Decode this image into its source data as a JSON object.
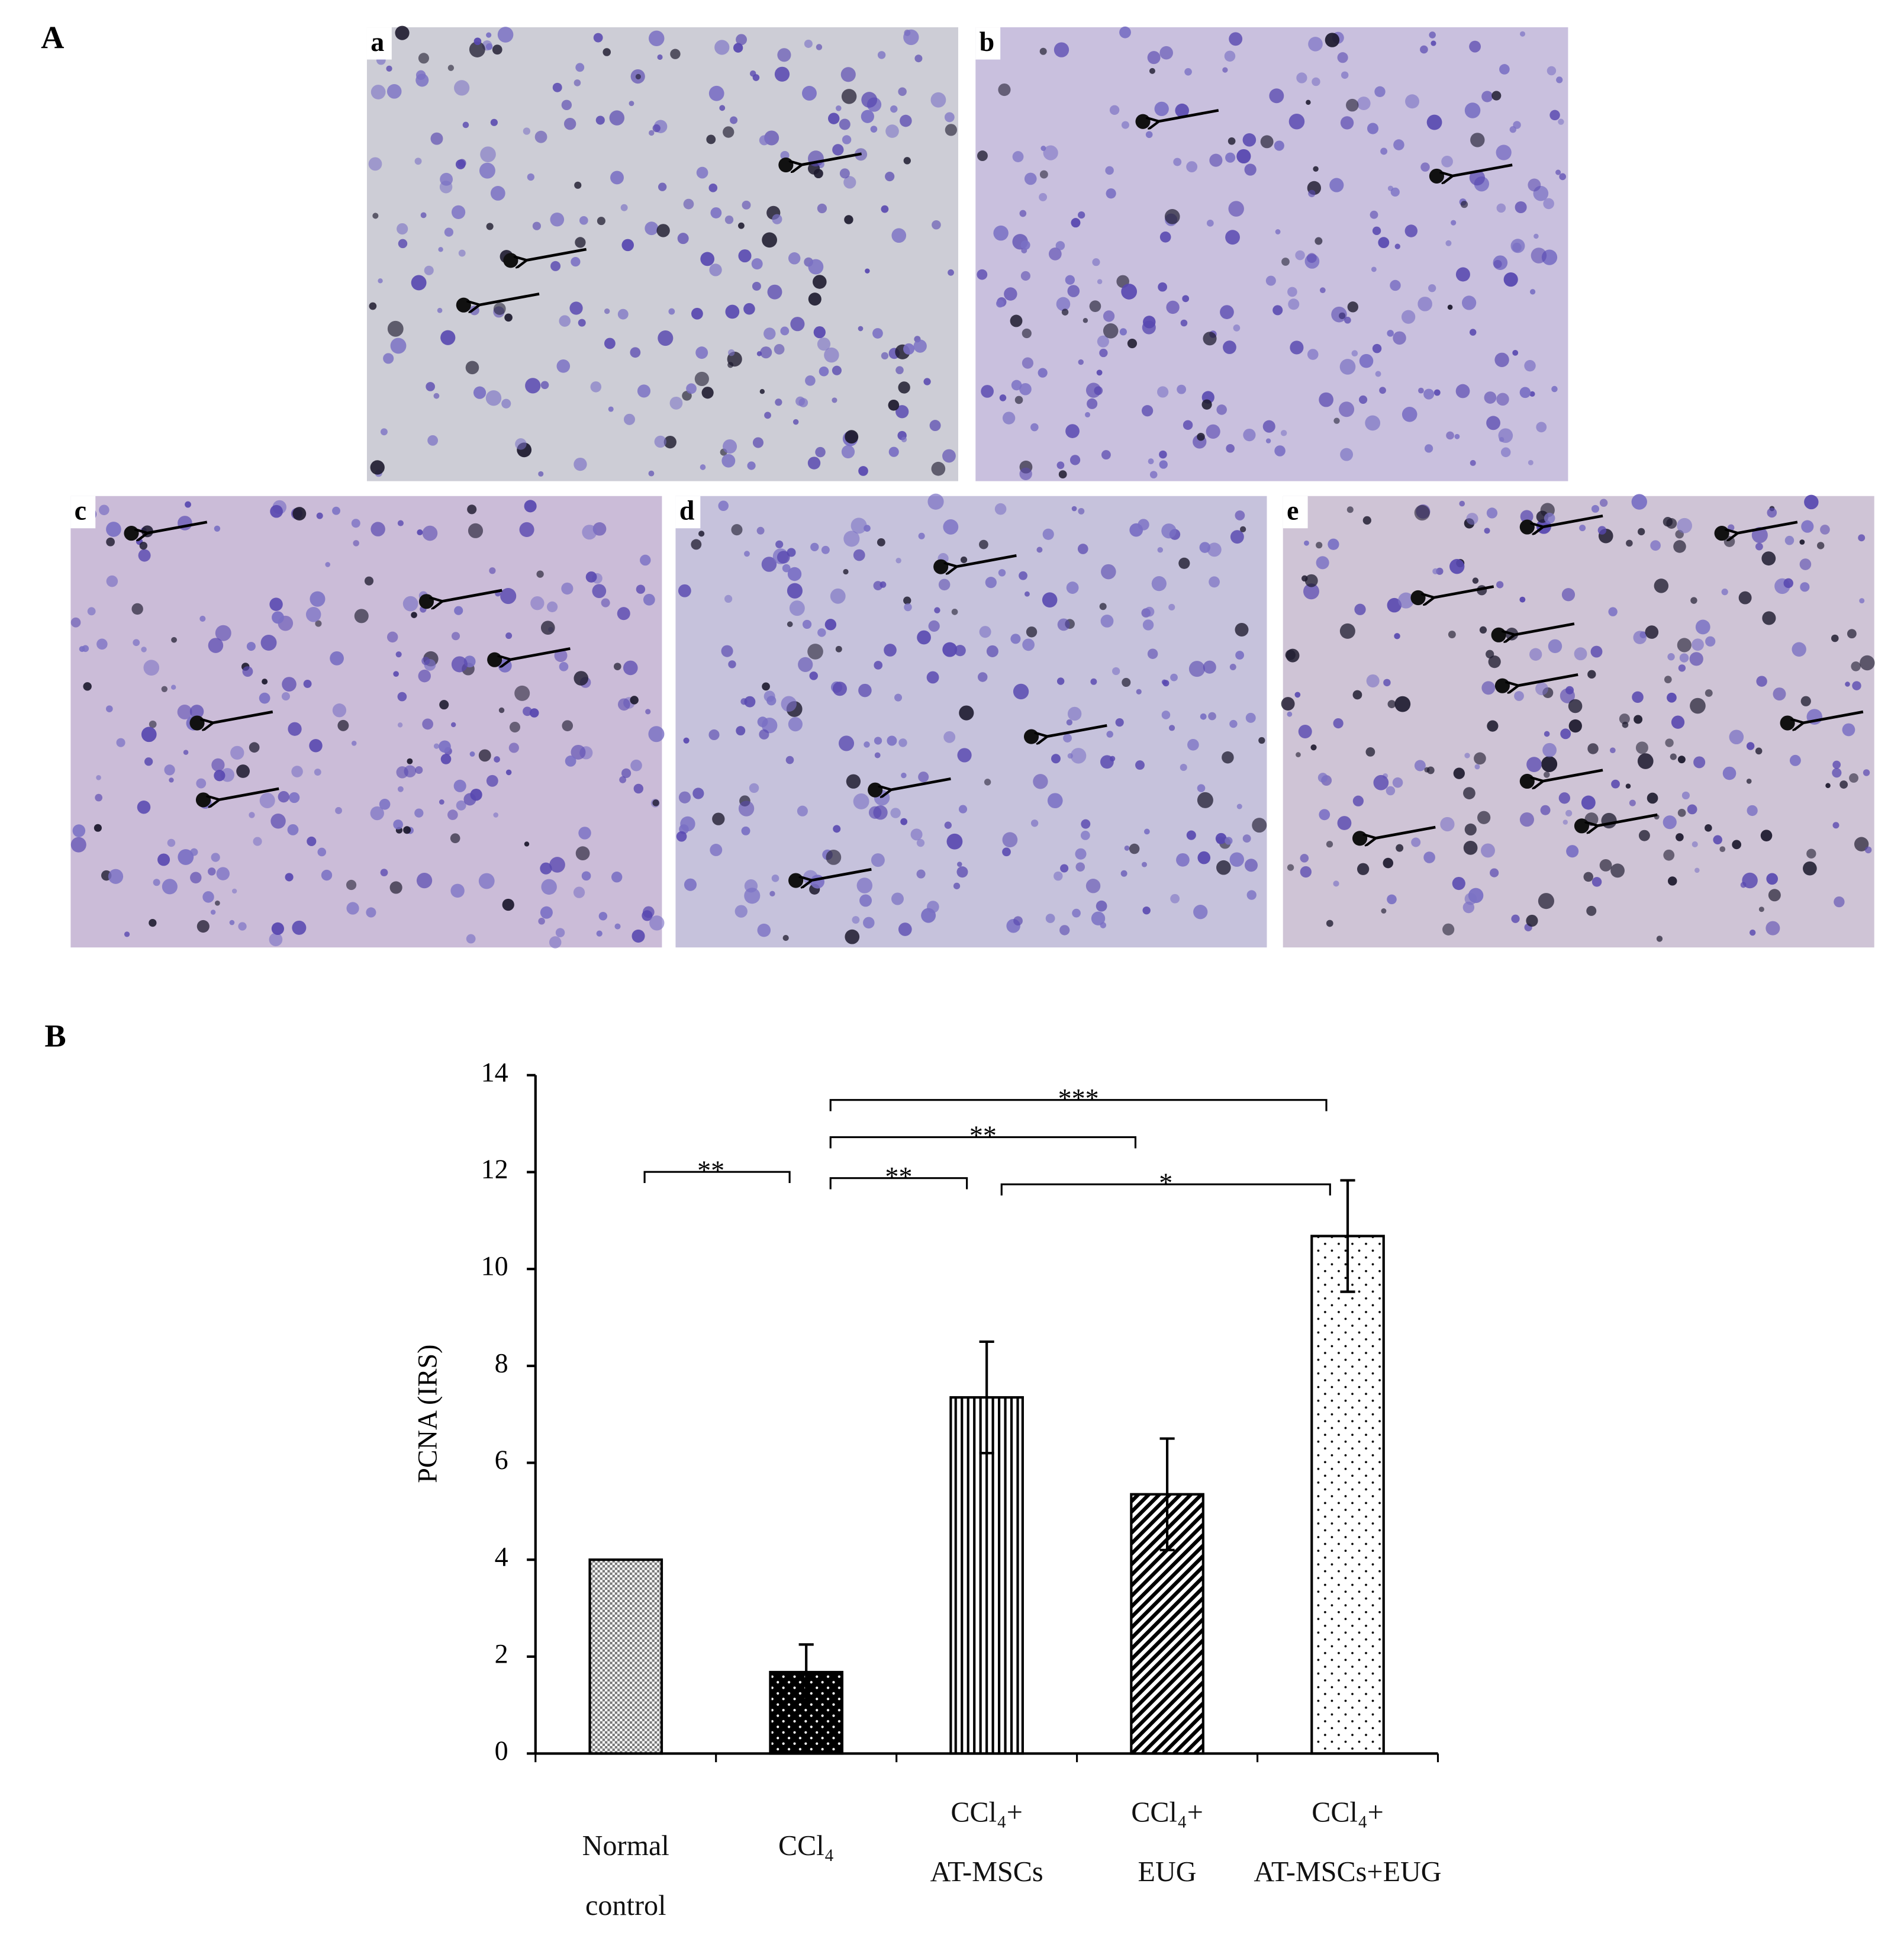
{
  "figure_labels": {
    "panel_a": "A",
    "panel_b": "B"
  },
  "micrographs": [
    "a",
    "b",
    "c",
    "d",
    "e"
  ],
  "chart_data": {
    "type": "bar",
    "y_label": "PCNA (IRS)",
    "categories": [
      "Normal\ncontrol",
      "CCl₄",
      "CCl₄+\nAT-MSCs",
      "CCl₄+\nEUG",
      "CCl₄+\nAT-MSCs+EUG"
    ],
    "values": [
      4.0,
      1.68,
      7.35,
      5.35,
      10.68
    ],
    "errors": [
      null,
      0.57,
      1.15,
      1.15,
      1.15
    ],
    "ylim": [
      0,
      14
    ],
    "yticks": [
      0,
      2,
      4,
      6,
      8,
      10,
      12,
      14
    ],
    "significance": [
      {
        "label": "**",
        "from": 0,
        "to": 1
      },
      {
        "label": "***",
        "from": 1,
        "to": 4
      },
      {
        "label": "**",
        "from": 1,
        "to": 3
      },
      {
        "label": "**",
        "from": 1,
        "to": 2
      },
      {
        "label": "*",
        "from": 2,
        "to": 4
      }
    ]
  }
}
